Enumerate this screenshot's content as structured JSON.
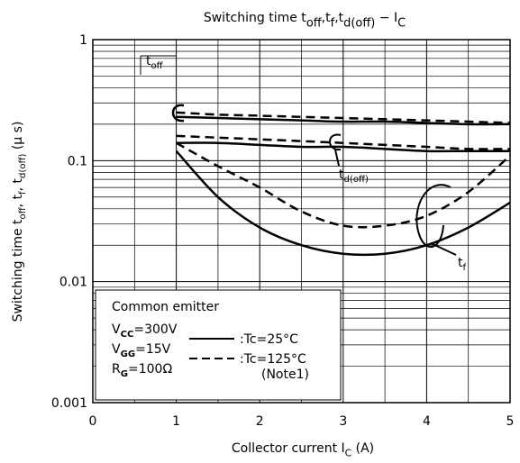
{
  "chart_data": {
    "type": "line",
    "title": [
      "Switching time t",
      "off",
      ",t",
      "f",
      ",t",
      "d(off)",
      " − I",
      "C"
    ],
    "xlabel": [
      "Collector current  I",
      "C",
      "  (A)"
    ],
    "ylabel": [
      "Switching time  t",
      "off",
      ", t",
      "f",
      ", t",
      "d(off)",
      "  (μ s)"
    ],
    "x": [
      1,
      1.5,
      2,
      2.5,
      3,
      3.5,
      4,
      4.5,
      5
    ],
    "series": [
      {
        "color": "#000000",
        "dash": "solid",
        "values": [
          0.23,
          0.225,
          0.22,
          0.215,
          0.21,
          0.21,
          0.205,
          0.2,
          0.2
        ]
      },
      {
        "color": "#000000",
        "dash": "dashed",
        "values": [
          0.25,
          0.24,
          0.235,
          0.23,
          0.225,
          0.22,
          0.215,
          0.21,
          0.205
        ]
      },
      {
        "color": "#000000",
        "dash": "solid",
        "values": [
          0.14,
          0.14,
          0.135,
          0.13,
          0.13,
          0.125,
          0.12,
          0.12,
          0.12
        ]
      },
      {
        "color": "#000000",
        "dash": "dashed",
        "values": [
          0.16,
          0.155,
          0.15,
          0.145,
          0.14,
          0.135,
          0.13,
          0.125,
          0.125
        ]
      },
      {
        "color": "#000000",
        "dash": "solid",
        "values": [
          0.12,
          0.05,
          0.028,
          0.02,
          0.017,
          0.017,
          0.02,
          0.028,
          0.045
        ]
      },
      {
        "color": "#000000",
        "dash": "dashed",
        "values": [
          0.14,
          0.09,
          0.06,
          0.038,
          0.029,
          0.029,
          0.035,
          0.055,
          0.11
        ]
      }
    ],
    "annotations": [
      [
        "t",
        "off"
      ],
      [
        "t",
        "d(off)"
      ],
      [
        "t",
        "f"
      ]
    ],
    "legend": {
      "title": "Common emitter",
      "conditions": [
        [
          "V",
          "CC",
          "=300V"
        ],
        [
          "V",
          "GG",
          "=15V"
        ],
        [
          "R",
          "G",
          "=100Ω"
        ]
      ],
      "entries": [
        {
          "label": ":Tc=25°C",
          "dash": "solid"
        },
        {
          "label": ":Tc=125°C",
          "dash": "dashed"
        }
      ],
      "note": "(Note1)"
    },
    "xlim": [
      0,
      5
    ],
    "xticks": [
      0,
      1,
      2,
      3,
      4,
      5
    ],
    "ylim": [
      0.001,
      1
    ],
    "yticks": [
      0.001,
      0.01,
      0.1,
      1
    ],
    "log_y": true,
    "grid": true
  }
}
